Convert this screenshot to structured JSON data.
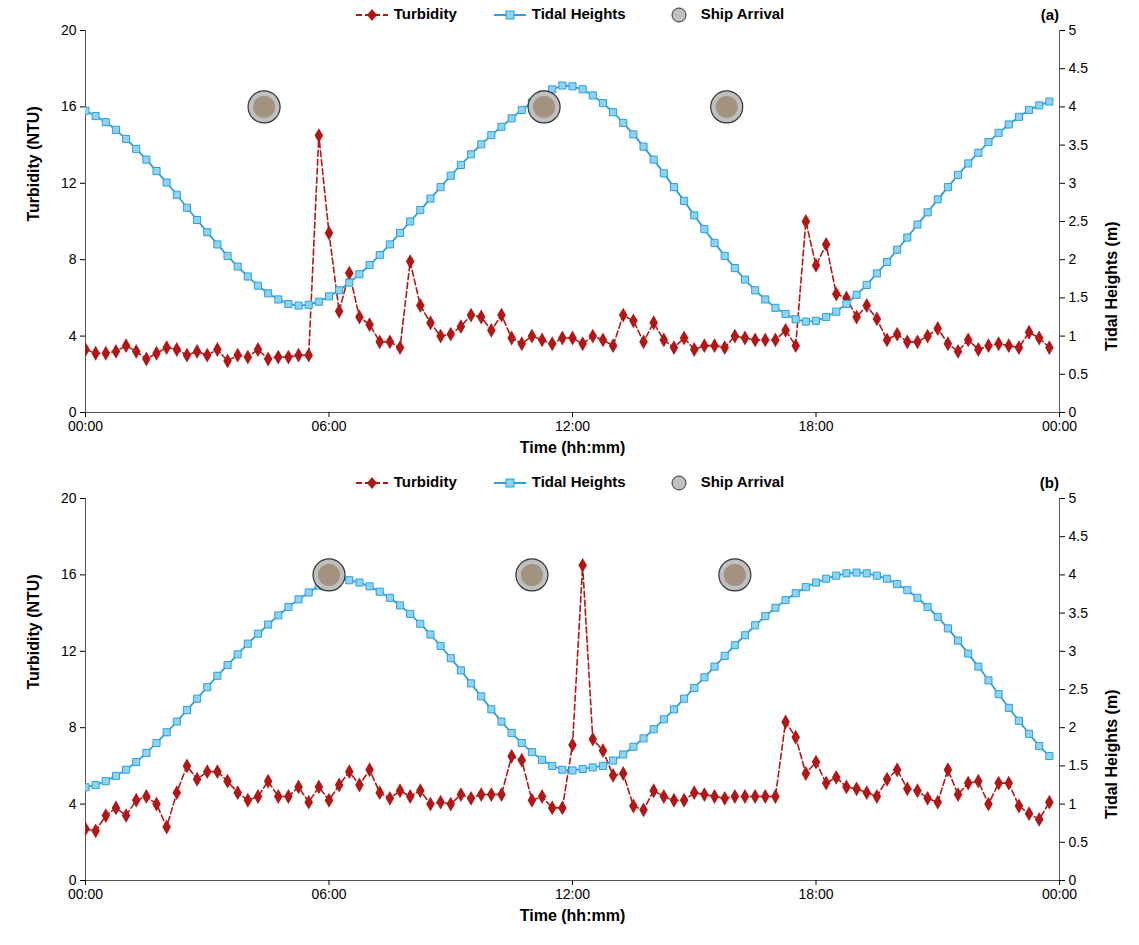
{
  "chart_data": [
    {
      "type": "line",
      "title": "(a)",
      "x_label": "Time (hh:mm)",
      "y_label": "Turbidity (NTU)",
      "y2_label": "Tidal Heights (m)",
      "legend": "top",
      "x": [
        0,
        0.25,
        0.5,
        0.75,
        1,
        1.25,
        1.5,
        1.75,
        2,
        2.25,
        2.5,
        2.75,
        3,
        3.25,
        3.5,
        3.75,
        4,
        4.25,
        4.5,
        4.75,
        5,
        5.25,
        5.5,
        5.75,
        6,
        6.25,
        6.5,
        6.75,
        7,
        7.25,
        7.5,
        7.75,
        8,
        8.25,
        8.5,
        8.75,
        9,
        9.25,
        9.5,
        9.75,
        10,
        10.25,
        10.5,
        10.75,
        11,
        11.25,
        11.5,
        11.75,
        12,
        12.25,
        12.5,
        12.75,
        13,
        13.25,
        13.5,
        13.75,
        14,
        14.25,
        14.5,
        14.75,
        15,
        15.25,
        15.5,
        15.75,
        16,
        16.25,
        16.5,
        16.75,
        17,
        17.25,
        17.5,
        17.75,
        18,
        18.25,
        18.5,
        18.75,
        19,
        19.25,
        19.5,
        19.75,
        20,
        20.25,
        20.5,
        20.75,
        21,
        21.25,
        21.5,
        21.75,
        22,
        22.25,
        22.5,
        22.75,
        23,
        23.25,
        23.5,
        23.75
      ],
      "xlim": [
        0,
        24
      ],
      "xticks": [
        {
          "value": 0,
          "label": "00:00"
        },
        {
          "value": 6,
          "label": "06:00"
        },
        {
          "value": 12,
          "label": "12:00"
        },
        {
          "value": 18,
          "label": "18:00"
        },
        {
          "value": 24,
          "label": "00:00"
        }
      ],
      "ylim": [
        0,
        20
      ],
      "yticks": [
        0,
        4,
        8,
        12,
        16,
        20
      ],
      "y2lim": [
        0,
        5
      ],
      "y2ticks": [
        0,
        0.5,
        1,
        1.5,
        2,
        2.5,
        3,
        3.5,
        4,
        4.5,
        5
      ],
      "series": [
        {
          "name": "Turbidity",
          "color": "#b01818",
          "marker": "diamond",
          "line_style": "dashed",
          "values": [
            3.3,
            3.1,
            3.1,
            3.2,
            3.5,
            3.2,
            2.8,
            3.1,
            3.4,
            3.3,
            3.0,
            3.2,
            3.0,
            3.3,
            2.7,
            3.0,
            2.9,
            3.3,
            2.8,
            2.9,
            2.9,
            3.0,
            3.0,
            14.5,
            9.4,
            5.3,
            7.3,
            5.0,
            4.6,
            3.7,
            3.7,
            3.4,
            7.9,
            5.6,
            4.7,
            4.0,
            4.1,
            4.5,
            5.1,
            5.0,
            4.3,
            5.1,
            3.9,
            3.6,
            4.0,
            3.8,
            3.6,
            3.9,
            3.9,
            3.6,
            4.0,
            3.8,
            3.5,
            5.1,
            4.8,
            3.7,
            4.7,
            3.8,
            3.4,
            3.9,
            3.3,
            3.5,
            3.5,
            3.4,
            4.0,
            3.9,
            3.8,
            3.8,
            3.8,
            4.3,
            3.5,
            10.0,
            7.7,
            8.8,
            6.2,
            6.0,
            5.0,
            5.6,
            4.9,
            3.8,
            4.1,
            3.7,
            3.7,
            4.0,
            4.4,
            3.6,
            3.2,
            3.8,
            3.3,
            3.5,
            3.6,
            3.5,
            3.4,
            4.2,
            3.9,
            3.4
          ]
        },
        {
          "name": "Tidal Heights",
          "color": "#2f9fd8",
          "marker": "square",
          "line_style": "solid",
          "axis": "y2",
          "values": [
            3.95,
            3.88,
            3.8,
            3.7,
            3.58,
            3.45,
            3.31,
            3.16,
            3.01,
            2.85,
            2.68,
            2.52,
            2.36,
            2.2,
            2.05,
            1.91,
            1.78,
            1.66,
            1.56,
            1.48,
            1.42,
            1.4,
            1.41,
            1.45,
            1.52,
            1.6,
            1.7,
            1.81,
            1.93,
            2.06,
            2.2,
            2.35,
            2.5,
            2.65,
            2.8,
            2.95,
            3.1,
            3.24,
            3.38,
            3.51,
            3.63,
            3.74,
            3.85,
            3.96,
            4.06,
            4.16,
            4.23,
            4.28,
            4.27,
            4.23,
            4.15,
            4.05,
            3.93,
            3.79,
            3.64,
            3.48,
            3.31,
            3.13,
            2.95,
            2.77,
            2.58,
            2.4,
            2.22,
            2.05,
            1.89,
            1.74,
            1.6,
            1.48,
            1.37,
            1.29,
            1.22,
            1.19,
            1.2,
            1.25,
            1.32,
            1.42,
            1.54,
            1.67,
            1.82,
            1.97,
            2.13,
            2.29,
            2.46,
            2.62,
            2.79,
            2.95,
            3.11,
            3.26,
            3.4,
            3.54,
            3.66,
            3.77,
            3.87,
            3.96,
            4.02,
            4.07
          ]
        },
        {
          "name": "Ship Arrival",
          "type": "scatter",
          "color": "#bfbfbf",
          "marker": "circle",
          "x": [
            4.4,
            11.3,
            15.8
          ],
          "values": [
            16,
            16,
            16
          ]
        }
      ]
    },
    {
      "type": "line",
      "title": "(b)",
      "x_label": "Time (hh:mm)",
      "y_label": "Turbidity (NTU)",
      "y2_label": "Tidal Heights (m)",
      "legend": "top",
      "x": [
        0,
        0.25,
        0.5,
        0.75,
        1,
        1.25,
        1.5,
        1.75,
        2,
        2.25,
        2.5,
        2.75,
        3,
        3.25,
        3.5,
        3.75,
        4,
        4.25,
        4.5,
        4.75,
        5,
        5.25,
        5.5,
        5.75,
        6,
        6.25,
        6.5,
        6.75,
        7,
        7.25,
        7.5,
        7.75,
        8,
        8.25,
        8.5,
        8.75,
        9,
        9.25,
        9.5,
        9.75,
        10,
        10.25,
        10.5,
        10.75,
        11,
        11.25,
        11.5,
        11.75,
        12,
        12.25,
        12.5,
        12.75,
        13,
        13.25,
        13.5,
        13.75,
        14,
        14.25,
        14.5,
        14.75,
        15,
        15.25,
        15.5,
        15.75,
        16,
        16.25,
        16.5,
        16.75,
        17,
        17.25,
        17.5,
        17.75,
        18,
        18.25,
        18.5,
        18.75,
        19,
        19.25,
        19.5,
        19.75,
        20,
        20.25,
        20.5,
        20.75,
        21,
        21.25,
        21.5,
        21.75,
        22,
        22.25,
        22.5,
        22.75,
        23,
        23.25,
        23.5,
        23.75
      ],
      "xlim": [
        0,
        24
      ],
      "xticks": [
        {
          "value": 0,
          "label": "00:00"
        },
        {
          "value": 6,
          "label": "06:00"
        },
        {
          "value": 12,
          "label": "12:00"
        },
        {
          "value": 18,
          "label": "18:00"
        },
        {
          "value": 24,
          "label": "00:00"
        }
      ],
      "ylim": [
        0,
        20
      ],
      "yticks": [
        0,
        4,
        8,
        12,
        16,
        20
      ],
      "y2lim": [
        0,
        5
      ],
      "y2ticks": [
        0,
        0.5,
        1,
        1.5,
        2,
        2.5,
        3,
        3.5,
        4,
        4.5,
        5
      ],
      "series": [
        {
          "name": "Turbidity",
          "color": "#b01818",
          "marker": "diamond",
          "line_style": "dashed",
          "values": [
            2.7,
            2.6,
            3.4,
            3.8,
            3.4,
            4.2,
            4.4,
            4.0,
            2.8,
            4.6,
            6.0,
            5.3,
            5.7,
            5.7,
            5.2,
            4.6,
            4.2,
            4.4,
            5.2,
            4.4,
            4.4,
            4.9,
            4.1,
            4.9,
            4.2,
            5.0,
            5.7,
            5.0,
            5.8,
            4.6,
            4.3,
            4.7,
            4.4,
            4.7,
            4.0,
            4.1,
            4.0,
            4.5,
            4.3,
            4.5,
            4.5,
            4.5,
            6.5,
            6.3,
            4.2,
            4.4,
            3.8,
            3.8,
            7.1,
            16.5,
            7.4,
            6.8,
            5.5,
            5.6,
            3.9,
            3.7,
            4.7,
            4.4,
            4.2,
            4.2,
            4.6,
            4.5,
            4.4,
            4.3,
            4.4,
            4.4,
            4.4,
            4.4,
            4.4,
            8.3,
            7.5,
            5.6,
            6.2,
            5.1,
            5.4,
            4.9,
            4.8,
            4.6,
            4.4,
            5.3,
            5.8,
            4.8,
            4.7,
            4.3,
            4.1,
            5.8,
            4.5,
            5.1,
            5.2,
            4.0,
            5.1,
            5.1,
            3.9,
            3.5,
            3.2,
            4.1
          ]
        },
        {
          "name": "Tidal Heights",
          "color": "#2f9fd8",
          "marker": "square",
          "line_style": "solid",
          "axis": "y2",
          "values": [
            1.22,
            1.25,
            1.3,
            1.37,
            1.45,
            1.55,
            1.67,
            1.8,
            1.94,
            2.08,
            2.23,
            2.38,
            2.53,
            2.68,
            2.82,
            2.96,
            3.1,
            3.23,
            3.35,
            3.47,
            3.58,
            3.68,
            3.77,
            3.86,
            3.93,
            3.95,
            3.93,
            3.9,
            3.85,
            3.78,
            3.7,
            3.6,
            3.49,
            3.36,
            3.22,
            3.07,
            2.91,
            2.75,
            2.58,
            2.41,
            2.24,
            2.08,
            1.93,
            1.8,
            1.68,
            1.58,
            1.5,
            1.45,
            1.44,
            1.46,
            1.48,
            1.5,
            1.57,
            1.65,
            1.75,
            1.86,
            1.98,
            2.11,
            2.24,
            2.38,
            2.52,
            2.66,
            2.8,
            2.94,
            3.08,
            3.21,
            3.34,
            3.46,
            3.57,
            3.67,
            3.76,
            3.84,
            3.9,
            3.95,
            3.99,
            4.02,
            4.03,
            4.02,
            3.99,
            3.95,
            3.88,
            3.8,
            3.7,
            3.58,
            3.45,
            3.3,
            3.14,
            2.97,
            2.8,
            2.62,
            2.44,
            2.26,
            2.09,
            1.92,
            1.76,
            1.63
          ]
        },
        {
          "name": "Ship Arrival",
          "type": "scatter",
          "color": "#bfbfbf",
          "marker": "circle",
          "x": [
            6.0,
            11.0,
            16.0
          ],
          "values": [
            16,
            16,
            16
          ]
        }
      ]
    }
  ]
}
